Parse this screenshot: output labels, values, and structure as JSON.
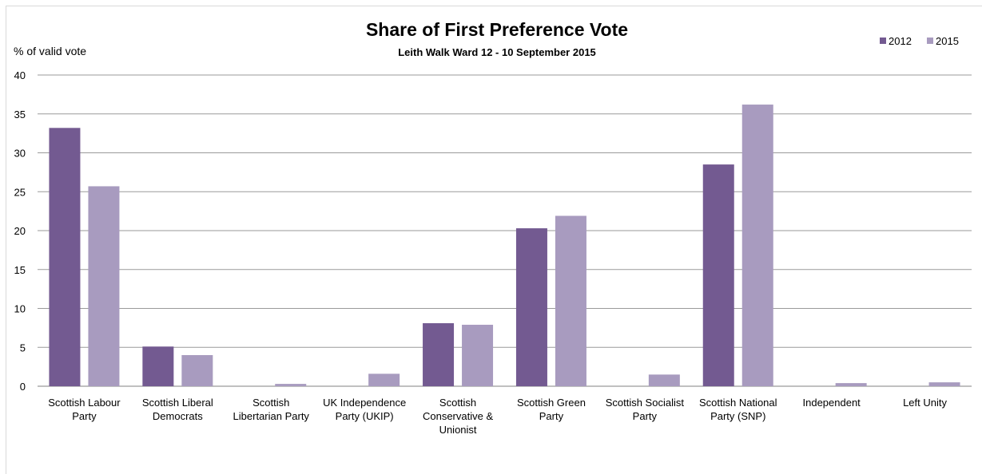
{
  "chart_data": {
    "type": "bar",
    "title": "Share of First Preference Vote",
    "subtitle": "Leith Walk Ward 12 - 10 September 2015",
    "ylabel": "% of valid vote",
    "xlabel": "",
    "ylim": [
      0,
      40
    ],
    "yticks": [
      "0",
      "5",
      "10",
      "15",
      "20",
      "25",
      "30",
      "35",
      "40"
    ],
    "grid": true,
    "legend_position": "top-right",
    "categories": [
      [
        "Scottish Labour",
        "Party"
      ],
      [
        "Scottish Liberal",
        "Democrats"
      ],
      [
        "Scottish",
        "Libertarian Party"
      ],
      [
        "UK Independence",
        "Party (UKIP)"
      ],
      [
        "Scottish",
        "Conservative &",
        "Unionist"
      ],
      [
        "Scottish Green",
        "Party"
      ],
      [
        "Scottish Socialist",
        "Party"
      ],
      [
        "Scottish National",
        "Party (SNP)"
      ],
      [
        "Independent"
      ],
      [
        "Left Unity"
      ]
    ],
    "series": [
      {
        "name": "2012",
        "color": "#735a91",
        "values": [
          33.2,
          5.1,
          null,
          null,
          8.1,
          20.3,
          null,
          28.5,
          null,
          null
        ]
      },
      {
        "name": "2015",
        "color": "#a89bbf",
        "values": [
          25.7,
          4.0,
          0.3,
          1.6,
          7.9,
          21.9,
          1.5,
          36.2,
          0.4,
          0.5
        ]
      }
    ]
  }
}
